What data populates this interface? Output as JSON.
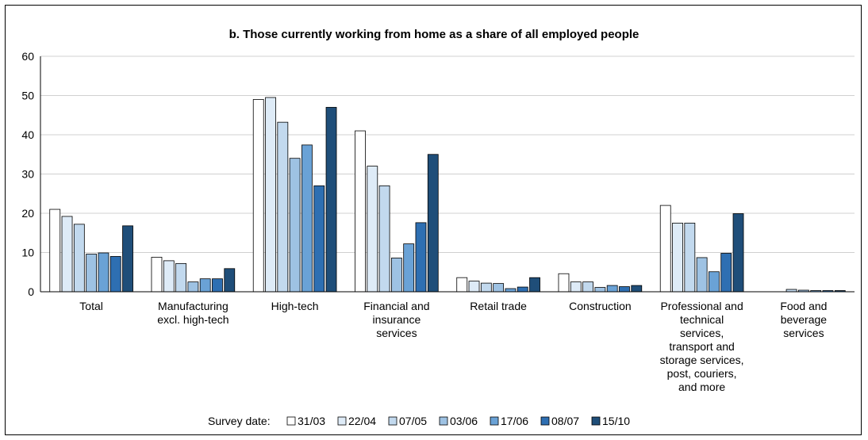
{
  "chart_data": {
    "type": "bar",
    "title": "b. Those currently working from home as a share of all employed people",
    "xlabel": "",
    "ylabel": "",
    "ylim": [
      0,
      60
    ],
    "yticks": [
      "0",
      "10",
      "20",
      "30",
      "40",
      "50",
      "60"
    ],
    "grid": true,
    "legend_position": "bottom",
    "legend_label": "Survey date:",
    "categories": [
      [
        "Total"
      ],
      [
        "Manufacturing",
        "excl. high-tech"
      ],
      [
        "High-tech"
      ],
      [
        "Financial and",
        "insurance",
        "services"
      ],
      [
        "Retail trade"
      ],
      [
        "Construction"
      ],
      [
        "Professional and",
        "technical",
        "services,",
        "transport and",
        "storage services,",
        "post, couriers,",
        "and more"
      ],
      [
        "Food and",
        "beverage",
        "services"
      ]
    ],
    "series": [
      {
        "name": "31/03",
        "color": "#ffffff",
        "values": [
          21.0,
          8.8,
          49.0,
          41.0,
          3.6,
          4.6,
          22.0,
          0.0
        ]
      },
      {
        "name": "22/04",
        "color": "#deebf7",
        "values": [
          19.2,
          7.9,
          49.5,
          32.0,
          2.7,
          2.5,
          17.5,
          0.0
        ]
      },
      {
        "name": "07/05",
        "color": "#c2d9ee",
        "values": [
          17.2,
          7.2,
          43.2,
          27.0,
          2.2,
          2.5,
          17.5,
          0.6
        ]
      },
      {
        "name": "03/06",
        "color": "#9ec2e3",
        "values": [
          9.6,
          2.5,
          34.0,
          8.6,
          2.1,
          1.1,
          8.7,
          0.4
        ]
      },
      {
        "name": "17/06",
        "color": "#6aa2d6",
        "values": [
          9.9,
          3.3,
          37.4,
          12.2,
          0.8,
          1.6,
          5.1,
          0.3
        ]
      },
      {
        "name": "08/07",
        "color": "#2e6fb2",
        "values": [
          9.0,
          3.3,
          27.0,
          17.6,
          1.2,
          1.3,
          9.8,
          0.3
        ]
      },
      {
        "name": "15/10",
        "color": "#1f4e79",
        "values": [
          16.8,
          5.9,
          47.0,
          35.0,
          3.6,
          1.6,
          19.9,
          0.3
        ]
      }
    ]
  }
}
